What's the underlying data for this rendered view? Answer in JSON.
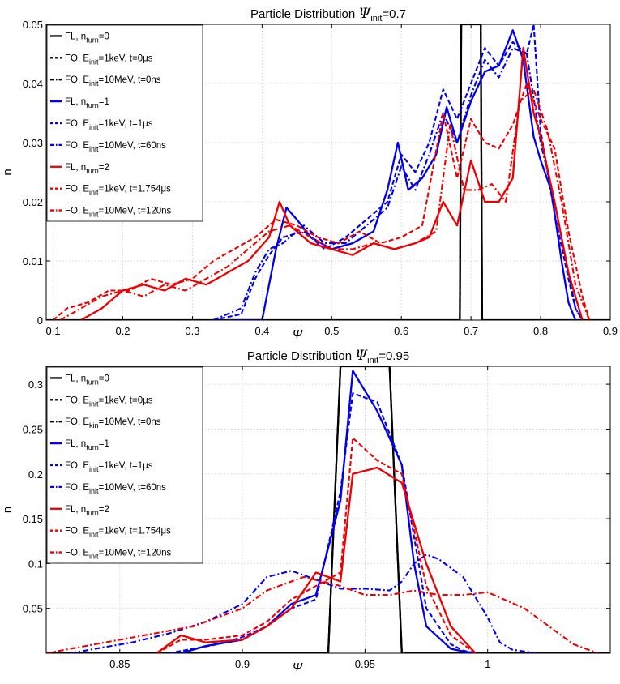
{
  "chart_data": [
    {
      "type": "line",
      "title": "Particle Distribution Ψinit=0.7",
      "title_parts": [
        "Particle Distribution ",
        "Ψ",
        "init",
        "=0.7"
      ],
      "xlabel": "Ψ",
      "ylabel": "n",
      "xlim": [
        0.09,
        0.9
      ],
      "ylim": [
        0,
        0.05
      ],
      "xticks": [
        0.1,
        0.2,
        0.3,
        0.4,
        0.5,
        0.6,
        0.7,
        0.8,
        0.9
      ],
      "xtick_labels": [
        "0.1",
        "0.2",
        "0.3",
        "0.4",
        "0.5",
        "0.6",
        "0.7",
        "0.8",
        "0.9"
      ],
      "yticks": [
        0,
        0.01,
        0.02,
        0.03,
        0.04,
        0.05
      ],
      "ytick_labels": [
        "0",
        "0.01",
        "0.02",
        "0.03",
        "0.04",
        "0.05"
      ],
      "grid": true,
      "legend_position": "top-left",
      "series": [
        {
          "name": "FL, nturn=0",
          "legend_parts": [
            "FL, n",
            "turn",
            "=0"
          ],
          "color": "#000000",
          "style": "solid",
          "x": [
            0.09,
            0.684,
            0.686,
            0.714,
            0.716,
            0.9
          ],
          "y": [
            0,
            0,
            0.05,
            0.05,
            0,
            0
          ]
        },
        {
          "name": "FO, Einit=1keV, t=0μs",
          "legend_parts": [
            "FO, E",
            "init",
            "=1keV, t=0μs"
          ],
          "color": "#000000",
          "style": "dashed",
          "x": [
            0.09,
            0.684,
            0.686,
            0.714,
            0.716,
            0.9
          ],
          "y": [
            0,
            0,
            0.05,
            0.05,
            0,
            0
          ]
        },
        {
          "name": "FO, Einit=10MeV, t=0ns",
          "legend_parts": [
            "FO, E",
            "init",
            "=10MeV, t=0ns"
          ],
          "color": "#000000",
          "style": "dashdot",
          "x": [
            0.09,
            0.684,
            0.686,
            0.714,
            0.716,
            0.9
          ],
          "y": [
            0,
            0,
            0.05,
            0.05,
            0,
            0
          ]
        },
        {
          "name": "FL, nturn=1",
          "legend_parts": [
            "FL, n",
            "turn",
            "=1"
          ],
          "color": "#0000ee",
          "style": "solid",
          "x": [
            0.35,
            0.4,
            0.42,
            0.435,
            0.45,
            0.47,
            0.5,
            0.53,
            0.56,
            0.58,
            0.595,
            0.61,
            0.63,
            0.65,
            0.665,
            0.68,
            0.7,
            0.72,
            0.74,
            0.76,
            0.775,
            0.79,
            0.8,
            0.815,
            0.83,
            0.84,
            0.85
          ],
          "y": [
            0,
            0,
            0.012,
            0.019,
            0.017,
            0.014,
            0.012,
            0.013,
            0.015,
            0.022,
            0.03,
            0.022,
            0.024,
            0.028,
            0.036,
            0.03,
            0.037,
            0.042,
            0.043,
            0.049,
            0.044,
            0.031,
            0.027,
            0.022,
            0.01,
            0.003,
            0
          ]
        },
        {
          "name": "FO, Einit=1keV, t=1μs",
          "legend_parts": [
            "FO, E",
            "init",
            "=1keV, t=1μs"
          ],
          "color": "#0000ee",
          "style": "dashed",
          "x": [
            0.33,
            0.37,
            0.39,
            0.41,
            0.43,
            0.46,
            0.49,
            0.52,
            0.55,
            0.58,
            0.6,
            0.62,
            0.64,
            0.66,
            0.68,
            0.7,
            0.72,
            0.74,
            0.76,
            0.78,
            0.79,
            0.8,
            0.82,
            0.84,
            0.85,
            0.86
          ],
          "y": [
            0,
            0.001,
            0.007,
            0.011,
            0.014,
            0.015,
            0.012,
            0.014,
            0.017,
            0.02,
            0.028,
            0.025,
            0.03,
            0.039,
            0.034,
            0.04,
            0.046,
            0.043,
            0.047,
            0.045,
            0.05,
            0.032,
            0.018,
            0.007,
            0.002,
            0
          ]
        },
        {
          "name": "FO, Einit=10MeV, t=60ns",
          "legend_parts": [
            "FO, E",
            "init",
            "=10MeV, t=60ns"
          ],
          "color": "#0000ee",
          "style": "dashdot",
          "x": [
            0.33,
            0.37,
            0.39,
            0.41,
            0.43,
            0.46,
            0.49,
            0.52,
            0.55,
            0.58,
            0.6,
            0.62,
            0.64,
            0.66,
            0.68,
            0.7,
            0.72,
            0.74,
            0.76,
            0.78,
            0.8,
            0.82,
            0.84,
            0.85,
            0.86
          ],
          "y": [
            0,
            0.002,
            0.008,
            0.012,
            0.013,
            0.016,
            0.013,
            0.013,
            0.016,
            0.019,
            0.026,
            0.022,
            0.028,
            0.035,
            0.03,
            0.038,
            0.044,
            0.041,
            0.046,
            0.045,
            0.03,
            0.02,
            0.008,
            0.002,
            0
          ]
        },
        {
          "name": "FL, nturn=2",
          "legend_parts": [
            "FL, n",
            "turn",
            "=2"
          ],
          "color": "#ee0000",
          "style": "solid",
          "x": [
            0.14,
            0.17,
            0.2,
            0.23,
            0.26,
            0.29,
            0.32,
            0.35,
            0.38,
            0.41,
            0.425,
            0.44,
            0.47,
            0.5,
            0.53,
            0.56,
            0.59,
            0.62,
            0.64,
            0.66,
            0.68,
            0.7,
            0.72,
            0.74,
            0.76,
            0.775,
            0.79,
            0.8,
            0.82,
            0.84,
            0.86
          ],
          "y": [
            0,
            0.002,
            0.005,
            0.006,
            0.005,
            0.007,
            0.006,
            0.008,
            0.01,
            0.014,
            0.02,
            0.016,
            0.013,
            0.012,
            0.011,
            0.013,
            0.012,
            0.013,
            0.014,
            0.02,
            0.016,
            0.027,
            0.02,
            0.02,
            0.024,
            0.046,
            0.035,
            0.031,
            0.02,
            0.008,
            0
          ]
        },
        {
          "name": "FO, Einit=1keV, t=1.754μs",
          "legend_parts": [
            "FO, E",
            "init",
            "=1keV, t=1.754μs"
          ],
          "color": "#ee0000",
          "style": "dashed",
          "x": [
            0.1,
            0.12,
            0.15,
            0.18,
            0.21,
            0.24,
            0.27,
            0.3,
            0.33,
            0.36,
            0.39,
            0.42,
            0.45,
            0.48,
            0.51,
            0.54,
            0.57,
            0.6,
            0.63,
            0.66,
            0.68,
            0.7,
            0.72,
            0.74,
            0.76,
            0.78,
            0.8,
            0.82,
            0.84,
            0.86,
            0.87
          ],
          "y": [
            0,
            0.002,
            0.003,
            0.005,
            0.005,
            0.007,
            0.006,
            0.007,
            0.01,
            0.012,
            0.014,
            0.017,
            0.016,
            0.014,
            0.013,
            0.015,
            0.013,
            0.014,
            0.016,
            0.035,
            0.024,
            0.034,
            0.03,
            0.029,
            0.033,
            0.04,
            0.034,
            0.029,
            0.015,
            0.004,
            0
          ]
        },
        {
          "name": "FO, Einit=10MeV, t=120ns",
          "legend_parts": [
            "FO, E",
            "init",
            "=10MeV, t=120ns"
          ],
          "color": "#ee0000",
          "style": "dashdot",
          "x": [
            0.11,
            0.14,
            0.17,
            0.2,
            0.23,
            0.26,
            0.29,
            0.32,
            0.35,
            0.38,
            0.41,
            0.44,
            0.47,
            0.5,
            0.53,
            0.56,
            0.59,
            0.62,
            0.65,
            0.67,
            0.69,
            0.71,
            0.73,
            0.75,
            0.77,
            0.79,
            0.81,
            0.83,
            0.85,
            0.87
          ],
          "y": [
            0,
            0.002,
            0.004,
            0.005,
            0.004,
            0.006,
            0.005,
            0.007,
            0.009,
            0.012,
            0.015,
            0.016,
            0.014,
            0.012,
            0.012,
            0.013,
            0.012,
            0.013,
            0.015,
            0.033,
            0.022,
            0.022,
            0.023,
            0.02,
            0.037,
            0.039,
            0.032,
            0.02,
            0.006,
            0
          ]
        }
      ]
    },
    {
      "type": "line",
      "title": "Particle Distribution Ψinit=0.95",
      "title_parts": [
        "Particle Distribution ",
        "Ψ",
        "init",
        "=0.95"
      ],
      "xlabel": "Ψ",
      "ylabel": "n",
      "xlim": [
        0.82,
        1.05
      ],
      "ylim": [
        0,
        0.32
      ],
      "xticks": [
        0.85,
        0.9,
        0.95,
        1.0
      ],
      "xtick_labels": [
        "0.85",
        "0.9",
        "0.95",
        "1"
      ],
      "yticks": [
        0.05,
        0.1,
        0.15,
        0.2,
        0.25,
        0.3
      ],
      "ytick_labels": [
        "0.05",
        "0.1",
        "0.15",
        "0.2",
        "0.25",
        "0.3"
      ],
      "grid": true,
      "legend_position": "top-left",
      "series": [
        {
          "name": "FL, nturn=0",
          "legend_parts": [
            "FL, n",
            "turn",
            "=0"
          ],
          "color": "#000000",
          "style": "solid",
          "x": [
            0.82,
            0.935,
            0.94,
            0.96,
            0.965,
            1.05
          ],
          "y": [
            0,
            0,
            0.32,
            0.32,
            0,
            0
          ]
        },
        {
          "name": "FO, Einit=1keV, t=0μs",
          "legend_parts": [
            "FO, E",
            "init",
            "=1keV, t=0μs"
          ],
          "color": "#000000",
          "style": "dashed",
          "x": [
            0.82,
            0.935,
            0.94,
            0.96,
            0.965,
            1.05
          ],
          "y": [
            0,
            0,
            0.32,
            0.32,
            0,
            0
          ]
        },
        {
          "name": "FO, Ekin=10MeV, t=0ns",
          "legend_parts": [
            "FO, E",
            "kin",
            "=10MeV, t=0ns"
          ],
          "color": "#000000",
          "style": "dashdot",
          "x": [
            0.82,
            0.935,
            0.94,
            0.96,
            0.965,
            1.05
          ],
          "y": [
            0,
            0,
            0.32,
            0.32,
            0,
            0
          ]
        },
        {
          "name": "FL, nturn=1",
          "legend_parts": [
            "FL, n",
            "turn",
            "=1"
          ],
          "color": "#0000ee",
          "style": "solid",
          "x": [
            0.875,
            0.885,
            0.9,
            0.91,
            0.92,
            0.93,
            0.94,
            0.945,
            0.955,
            0.965,
            0.97,
            0.975,
            0.985,
            0.99,
            0.995
          ],
          "y": [
            0,
            0.008,
            0.015,
            0.03,
            0.055,
            0.065,
            0.17,
            0.315,
            0.27,
            0.21,
            0.1,
            0.03,
            0.005,
            0.002,
            0
          ]
        },
        {
          "name": "FO, Einit=1keV, t=1μs",
          "legend_parts": [
            "FO, E",
            "init",
            "=1keV, t=1μs"
          ],
          "color": "#0000ee",
          "style": "dashed",
          "x": [
            0.87,
            0.88,
            0.89,
            0.9,
            0.91,
            0.92,
            0.93,
            0.94,
            0.945,
            0.955,
            0.965,
            0.975,
            0.985,
            0.99,
            0.995
          ],
          "y": [
            0,
            0.005,
            0.01,
            0.018,
            0.03,
            0.05,
            0.06,
            0.18,
            0.29,
            0.28,
            0.21,
            0.05,
            0.01,
            0.003,
            0
          ]
        },
        {
          "name": "FO, Einit=10MeV, t=60ns",
          "legend_parts": [
            "FO, E",
            "init",
            "=10MeV, t=60ns"
          ],
          "color": "#0000ee",
          "style": "dashdot",
          "x": [
            0.83,
            0.84,
            0.855,
            0.87,
            0.885,
            0.9,
            0.91,
            0.92,
            0.93,
            0.94,
            0.95,
            0.96,
            0.965,
            0.97,
            0.975,
            0.98,
            0.99,
            1.0,
            1.005,
            1.01,
            1.02
          ],
          "y": [
            0,
            0.005,
            0.012,
            0.022,
            0.035,
            0.055,
            0.085,
            0.092,
            0.082,
            0.072,
            0.072,
            0.07,
            0.08,
            0.1,
            0.11,
            0.105,
            0.085,
            0.04,
            0.012,
            0.004,
            0
          ]
        },
        {
          "name": "FL, nturn=2",
          "legend_parts": [
            "FL, n",
            "turn",
            "=2"
          ],
          "color": "#ee0000",
          "style": "solid",
          "x": [
            0.865,
            0.875,
            0.885,
            0.9,
            0.91,
            0.92,
            0.93,
            0.94,
            0.945,
            0.955,
            0.965,
            0.975,
            0.985,
            0.995
          ],
          "y": [
            0,
            0.02,
            0.012,
            0.015,
            0.03,
            0.05,
            0.09,
            0.08,
            0.2,
            0.207,
            0.19,
            0.1,
            0.03,
            0
          ]
        },
        {
          "name": "FO, Einit=1keV, t=1.754μs",
          "legend_parts": [
            "FO, E",
            "init",
            "=1keV, t=1.754μs"
          ],
          "color": "#ee0000",
          "style": "dashed",
          "x": [
            0.865,
            0.875,
            0.885,
            0.9,
            0.91,
            0.92,
            0.93,
            0.94,
            0.945,
            0.955,
            0.965,
            0.975,
            0.985,
            0.995
          ],
          "y": [
            0,
            0.015,
            0.015,
            0.02,
            0.035,
            0.06,
            0.075,
            0.09,
            0.24,
            0.215,
            0.2,
            0.075,
            0.02,
            0
          ]
        },
        {
          "name": "FO, Einit=10MeV, t=120ns",
          "legend_parts": [
            "FO, E",
            "init",
            "=10MeV, t=120ns"
          ],
          "color": "#ee0000",
          "style": "dashdot",
          "x": [
            0.82,
            0.84,
            0.86,
            0.88,
            0.9,
            0.91,
            0.925,
            0.94,
            0.95,
            0.96,
            0.97,
            0.98,
            0.99,
            1.0,
            1.015,
            1.025,
            1.035,
            1.045
          ],
          "y": [
            0,
            0.01,
            0.02,
            0.03,
            0.05,
            0.07,
            0.085,
            0.075,
            0.065,
            0.065,
            0.07,
            0.065,
            0.065,
            0.068,
            0.05,
            0.03,
            0.01,
            0
          ]
        }
      ]
    }
  ]
}
